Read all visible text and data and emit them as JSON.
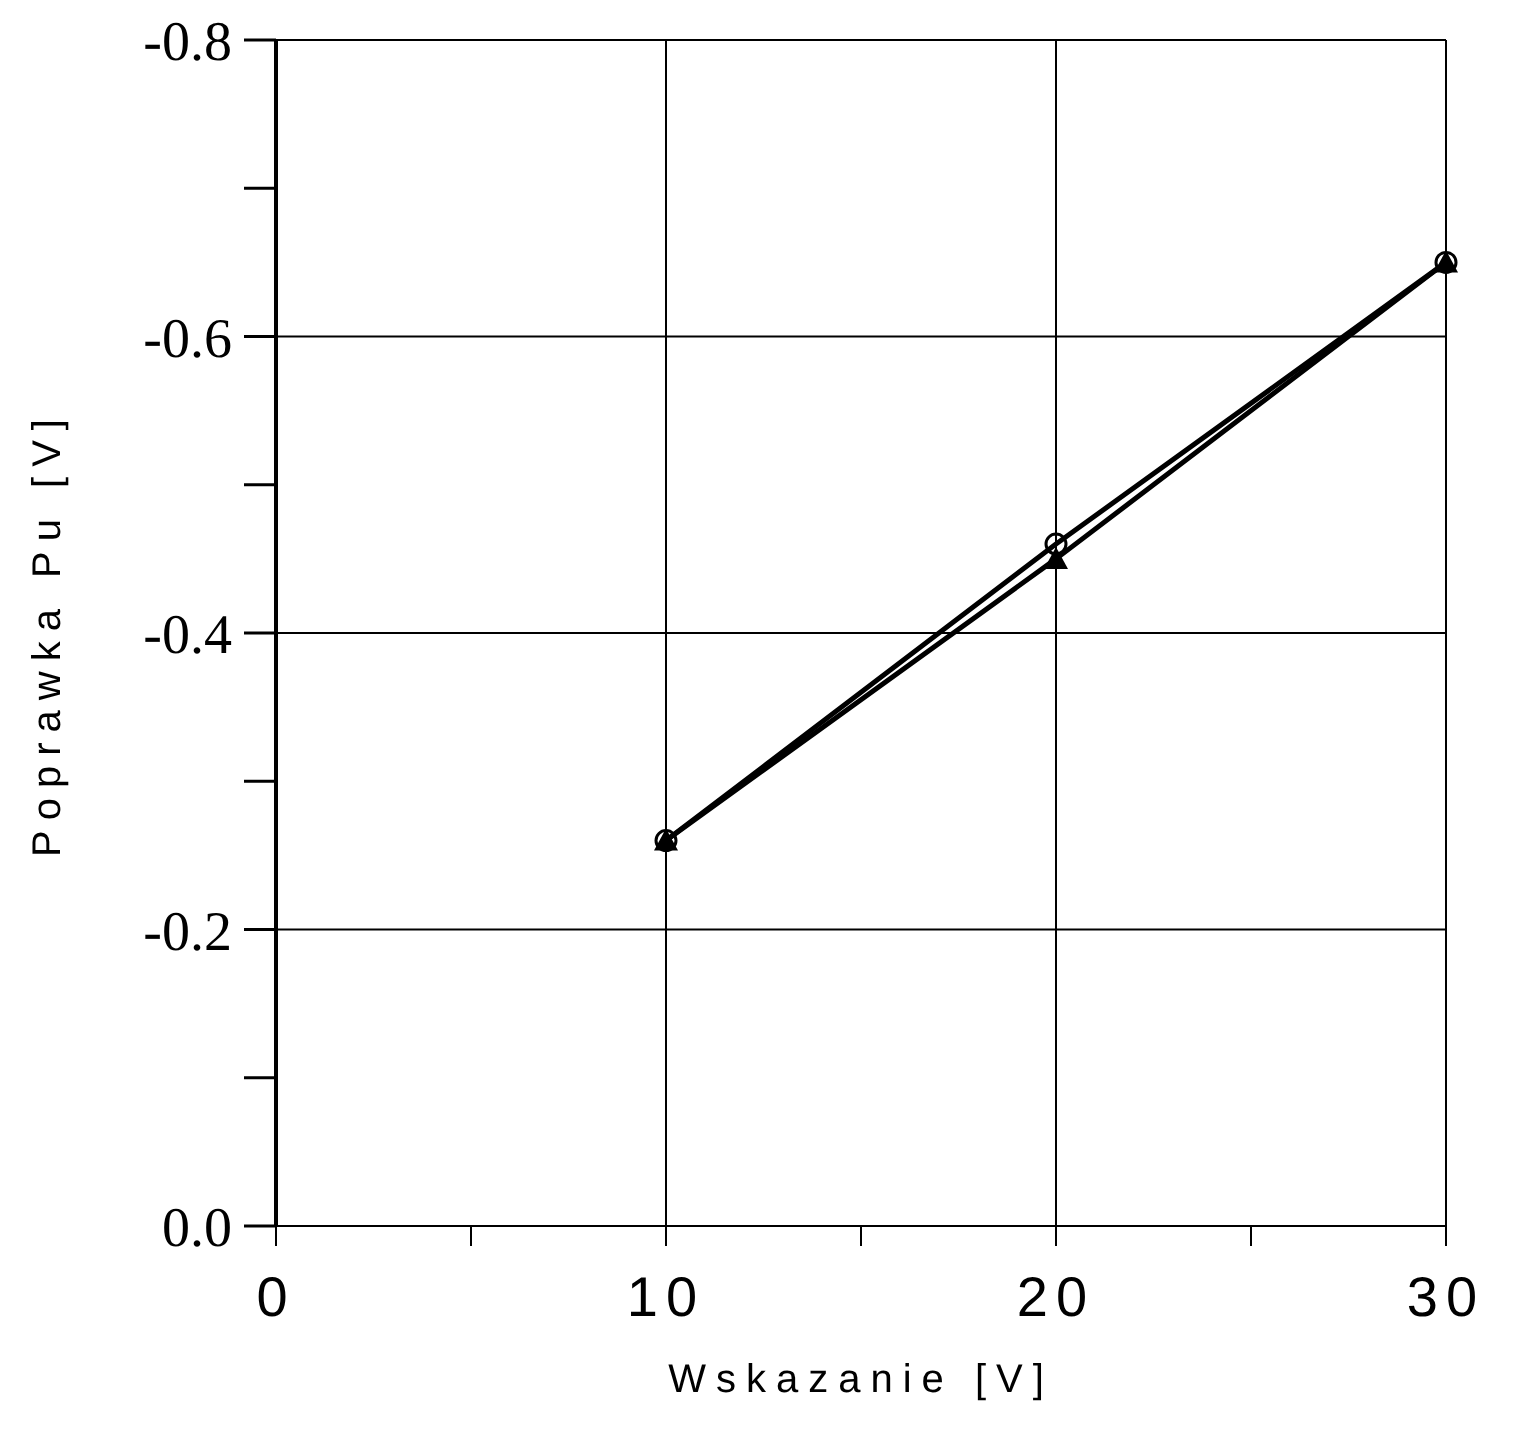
{
  "chart_data": {
    "type": "line",
    "xlabel": "Wskazanie [V]",
    "ylabel": "Poprawka Pu [V]",
    "x": [
      10,
      20,
      30
    ],
    "series": [
      {
        "color": "#000000",
        "marker": "circle",
        "values": [
          -0.26,
          -0.46,
          -0.65
        ]
      },
      {
        "color": "#000000",
        "marker": "triangle",
        "values": [
          -0.26,
          -0.45,
          -0.65
        ]
      }
    ],
    "xlim": [
      0,
      30
    ],
    "xticks": [
      0,
      {
        "value": 5,
        "label": null
      },
      10,
      {
        "value": 15,
        "label": null
      },
      20,
      {
        "value": 25,
        "label": null
      },
      30
    ],
    "ylim": [
      0,
      -0.8
    ],
    "yticks": [
      {
        "value": 0,
        "label": "0.0"
      },
      {
        "value": -0.1,
        "label": null
      },
      {
        "value": -0.2,
        "label": "-0.2"
      },
      {
        "value": -0.3,
        "label": null
      },
      {
        "value": -0.4,
        "label": "-0.4"
      },
      {
        "value": -0.5,
        "label": null
      },
      {
        "value": -0.6,
        "label": "-0.6"
      },
      {
        "value": -0.7,
        "label": null
      },
      {
        "value": -0.8,
        "label": "-0.8"
      }
    ],
    "grid": true,
    "line_style": "solid"
  }
}
